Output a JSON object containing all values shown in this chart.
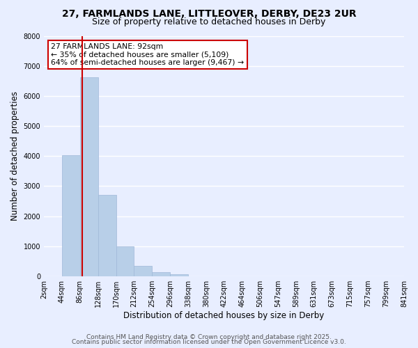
{
  "title": "27, FARMLANDS LANE, LITTLEOVER, DERBY, DE23 2UR",
  "subtitle": "Size of property relative to detached houses in Derby",
  "xlabel": "Distribution of detached houses by size in Derby",
  "ylabel": "Number of detached properties",
  "bar_edges": [
    2,
    44,
    86,
    128,
    170,
    212,
    254,
    296,
    338,
    380,
    422,
    464,
    506,
    547,
    589,
    631,
    673,
    715,
    757,
    799,
    841
  ],
  "bar_heights": [
    0,
    4020,
    6620,
    2700,
    1000,
    340,
    130,
    70,
    0,
    0,
    0,
    0,
    0,
    0,
    0,
    0,
    0,
    0,
    0,
    0
  ],
  "bar_color": "#b8cfe8",
  "bar_edge_color": "#a0b8d8",
  "vline_x": 92,
  "vline_color": "#cc0000",
  "annotation_line1": "27 FARMLANDS LANE: 92sqm",
  "annotation_line2": "← 35% of detached houses are smaller (5,109)",
  "annotation_line3": "64% of semi-detached houses are larger (9,467) →",
  "annotation_box_color": "#ffffff",
  "annotation_box_edge": "#cc0000",
  "ylim": [
    0,
    8000
  ],
  "yticks": [
    0,
    1000,
    2000,
    3000,
    4000,
    5000,
    6000,
    7000,
    8000
  ],
  "xtick_labels": [
    "2sqm",
    "44sqm",
    "86sqm",
    "128sqm",
    "170sqm",
    "212sqm",
    "254sqm",
    "296sqm",
    "338sqm",
    "380sqm",
    "422sqm",
    "464sqm",
    "506sqm",
    "547sqm",
    "589sqm",
    "631sqm",
    "673sqm",
    "715sqm",
    "757sqm",
    "799sqm",
    "841sqm"
  ],
  "background_color": "#e8eeff",
  "grid_color": "#ffffff",
  "footer_line1": "Contains HM Land Registry data © Crown copyright and database right 2025.",
  "footer_line2": "Contains public sector information licensed under the Open Government Licence v3.0.",
  "title_fontsize": 10,
  "subtitle_fontsize": 9,
  "axis_label_fontsize": 8.5,
  "tick_fontsize": 7,
  "footer_fontsize": 6.5
}
